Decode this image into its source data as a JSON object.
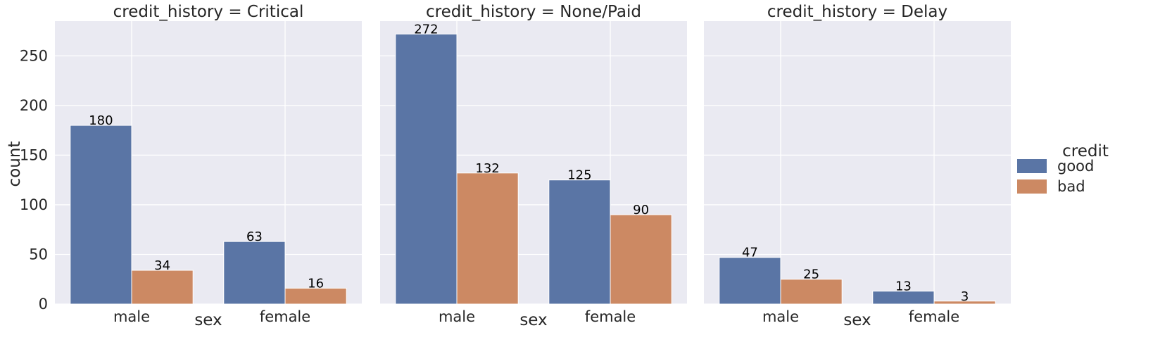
{
  "chart_data": {
    "type": "bar",
    "categories": [
      "male",
      "female"
    ],
    "xlabel": "sex",
    "ylabel": "count",
    "ylim": [
      0,
      285
    ],
    "yticks": [
      0,
      50,
      100,
      150,
      200,
      250
    ],
    "grid": true,
    "legend": {
      "title": "credit",
      "placement": "right",
      "entries": [
        {
          "name": "good",
          "color": "#5a75a5"
        },
        {
          "name": "bad",
          "color": "#cc8963"
        }
      ]
    },
    "facets": [
      {
        "title": "credit_history = Critical",
        "series": [
          {
            "name": "good",
            "values": [
              180,
              63
            ]
          },
          {
            "name": "bad",
            "values": [
              34,
              16
            ]
          }
        ]
      },
      {
        "title": "credit_history = None/Paid",
        "series": [
          {
            "name": "good",
            "values": [
              272,
              125
            ]
          },
          {
            "name": "bad",
            "values": [
              132,
              90
            ]
          }
        ]
      },
      {
        "title": "credit_history = Delay",
        "series": [
          {
            "name": "good",
            "values": [
              47,
              13
            ]
          },
          {
            "name": "bad",
            "values": [
              25,
              3
            ]
          }
        ]
      }
    ]
  }
}
